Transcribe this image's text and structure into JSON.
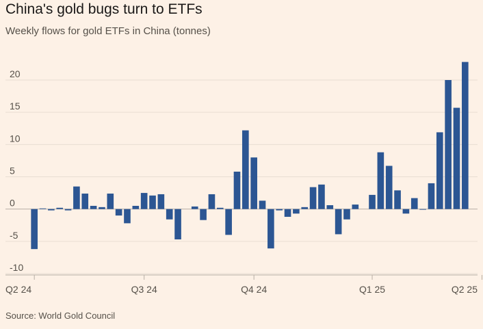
{
  "title": "China's gold bugs turn to ETFs",
  "subtitle": "Weekly flows for gold ETFs in China (tonnes)",
  "source": "Source: World Gold Council",
  "colors": {
    "background": "#fdf1e6",
    "bar": "#2c5693",
    "grid": "#e8ddd2",
    "axis": "#b8afa6"
  },
  "chart_data": {
    "type": "bar",
    "ylim": [
      -10,
      23
    ],
    "yticks": [
      -10,
      -5,
      0,
      5,
      10,
      15,
      20
    ],
    "ytick_labels": [
      "-10",
      "-5",
      "0",
      "5",
      "10",
      "15",
      "20"
    ],
    "grid": true,
    "legend": "none",
    "xticks": [
      {
        "label": "Q2 24",
        "index": 0
      },
      {
        "label": "Q3 24",
        "index": 13
      },
      {
        "label": "Q4 24",
        "index": 26
      },
      {
        "label": "Q1 25",
        "index": 40
      },
      {
        "label": "Q2 25",
        "index": 53
      }
    ],
    "values": [
      -6.2,
      0.1,
      -0.2,
      0.2,
      -0.2,
      3.5,
      2.4,
      0.5,
      0.3,
      2.4,
      -1.0,
      -2.2,
      0.5,
      2.5,
      2.1,
      2.3,
      -1.6,
      -4.7,
      0.0,
      0.4,
      -1.7,
      2.3,
      0.2,
      -4.0,
      5.8,
      12.2,
      8.0,
      1.3,
      -6.1,
      -0.2,
      -1.2,
      -0.7,
      0.3,
      3.4,
      3.8,
      0.6,
      -3.9,
      -1.6,
      0.7,
      0.0,
      2.2,
      8.8,
      6.7,
      2.9,
      -0.7,
      1.7,
      -0.1,
      4.0,
      11.9,
      20.0,
      15.7,
      22.8
    ]
  }
}
